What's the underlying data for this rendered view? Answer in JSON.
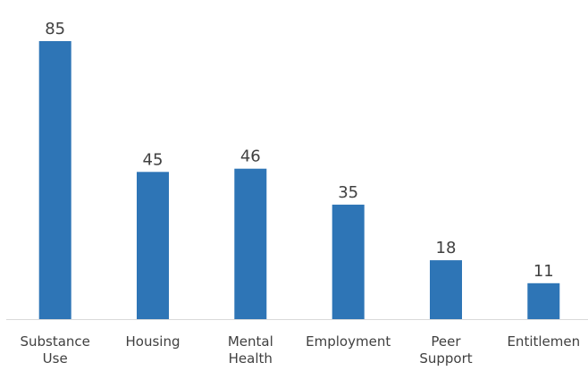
{
  "chart_data": {
    "type": "bar",
    "categories": [
      [
        "Substance",
        "Use"
      ],
      [
        "Housing"
      ],
      [
        "Mental",
        "Health"
      ],
      [
        "Employment"
      ],
      [
        "Peer",
        "Support"
      ],
      [
        "Entitlemen"
      ]
    ],
    "values": [
      85,
      45,
      46,
      35,
      18,
      11
    ],
    "data_labels": [
      "85",
      "45",
      "46",
      "35",
      "18",
      "11"
    ],
    "ylim": [
      0,
      88
    ],
    "grid": false,
    "legend": "none",
    "colors": {
      "bar": "#2E75B6",
      "axis": "#D9D9D9",
      "text": "#404040"
    }
  }
}
